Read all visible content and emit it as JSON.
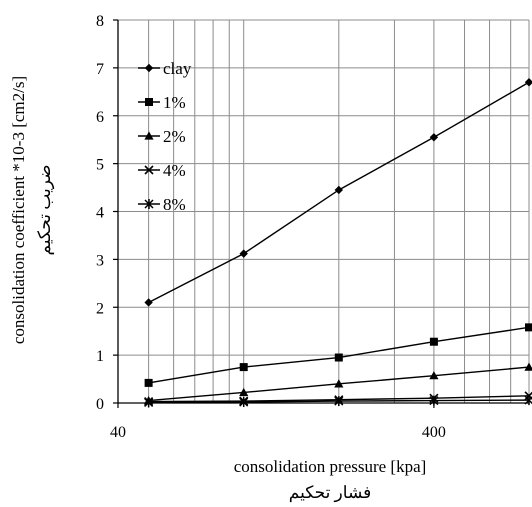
{
  "chart_data": {
    "type": "line",
    "x_scale": "log",
    "xlim": [
      40,
      800
    ],
    "ylim": [
      0,
      8
    ],
    "x_ticks": [
      40,
      400
    ],
    "x_tick_labels": [
      "40",
      "400"
    ],
    "y_ticks": [
      0,
      1,
      2,
      3,
      4,
      5,
      6,
      7,
      8
    ],
    "y_tick_labels": [
      "0",
      "1",
      "2",
      "3",
      "4",
      "5",
      "6",
      "7",
      "8"
    ],
    "grid": true,
    "legend_position": "top-left",
    "xlabel": "consolidation pressure [kpa]",
    "xlabel_2": "فشار تحکیم",
    "ylabel": "consolidation coefficient *10-3 [cm2/s]",
    "ylabel_2": "ضریب تحکیم",
    "series": [
      {
        "name": "clay",
        "marker": "diamond",
        "x": [
          50,
          100,
          200,
          400,
          800
        ],
        "y": [
          2.1,
          3.12,
          4.45,
          5.55,
          6.7
        ]
      },
      {
        "name": "1%",
        "marker": "square",
        "x": [
          50,
          100,
          200,
          400,
          800
        ],
        "y": [
          0.42,
          0.75,
          0.95,
          1.28,
          1.58
        ]
      },
      {
        "name": "2%",
        "marker": "triangle",
        "x": [
          50,
          100,
          200,
          400,
          800
        ],
        "y": [
          0.05,
          0.22,
          0.4,
          0.57,
          0.75
        ]
      },
      {
        "name": "4%",
        "marker": "x",
        "x": [
          50,
          100,
          200,
          400,
          800
        ],
        "y": [
          0.03,
          0.04,
          0.07,
          0.1,
          0.15
        ]
      },
      {
        "name": "8%",
        "marker": "asterisk",
        "x": [
          50,
          100,
          200,
          400,
          800
        ],
        "y": [
          0.01,
          0.02,
          0.04,
          0.05,
          0.06
        ]
      }
    ]
  }
}
